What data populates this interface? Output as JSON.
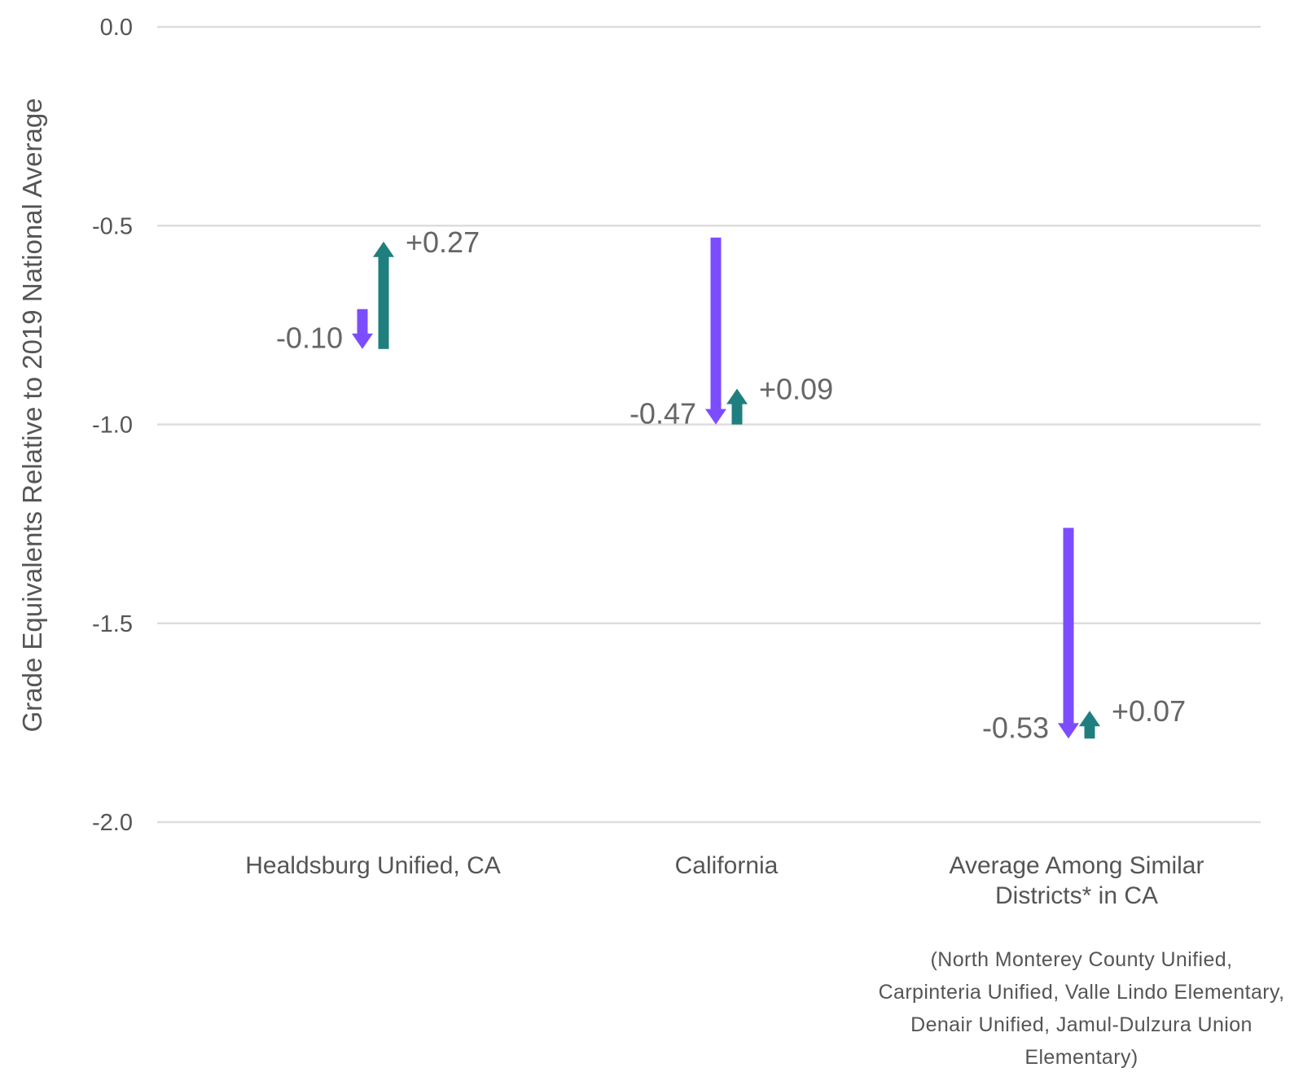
{
  "chart_data": {
    "type": "arrow",
    "ylabel": "Grade Equivalents Relative to 2019 National Average",
    "ylim": [
      -2.0,
      0.0
    ],
    "yticks": [
      0.0,
      -0.5,
      -1.0,
      -1.5,
      -2.0
    ],
    "ytick_labels": [
      "0.0",
      "-0.5",
      "-1.0",
      "-1.5",
      "-2.0"
    ],
    "grid": true,
    "colors": {
      "decline": "#7c4dff",
      "recovery": "#1f7f7f"
    },
    "categories": [
      {
        "label_lines": [
          "Healdsburg Unified, CA"
        ],
        "note_lines": [],
        "decline": {
          "from": -0.71,
          "to": -0.81,
          "label": "-0.10"
        },
        "recovery": {
          "from": -0.81,
          "to": -0.54,
          "label": "+0.27"
        }
      },
      {
        "label_lines": [
          "California"
        ],
        "note_lines": [],
        "decline": {
          "from": -0.53,
          "to": -1.0,
          "label": "-0.47"
        },
        "recovery": {
          "from": -1.0,
          "to": -0.91,
          "label": "+0.09"
        }
      },
      {
        "label_lines": [
          "Average Among Similar",
          "Districts* in CA"
        ],
        "note_lines": [
          "(North Monterey County Unified,",
          "Carpinteria Unified, Valle Lindo Elementary,",
          "Denair Unified, Jamul-Dulzura Union",
          "Elementary)"
        ],
        "decline": {
          "from": -1.26,
          "to": -1.79,
          "label": "-0.53"
        },
        "recovery": {
          "from": -1.79,
          "to": -1.72,
          "label": "+0.07"
        }
      }
    ]
  }
}
